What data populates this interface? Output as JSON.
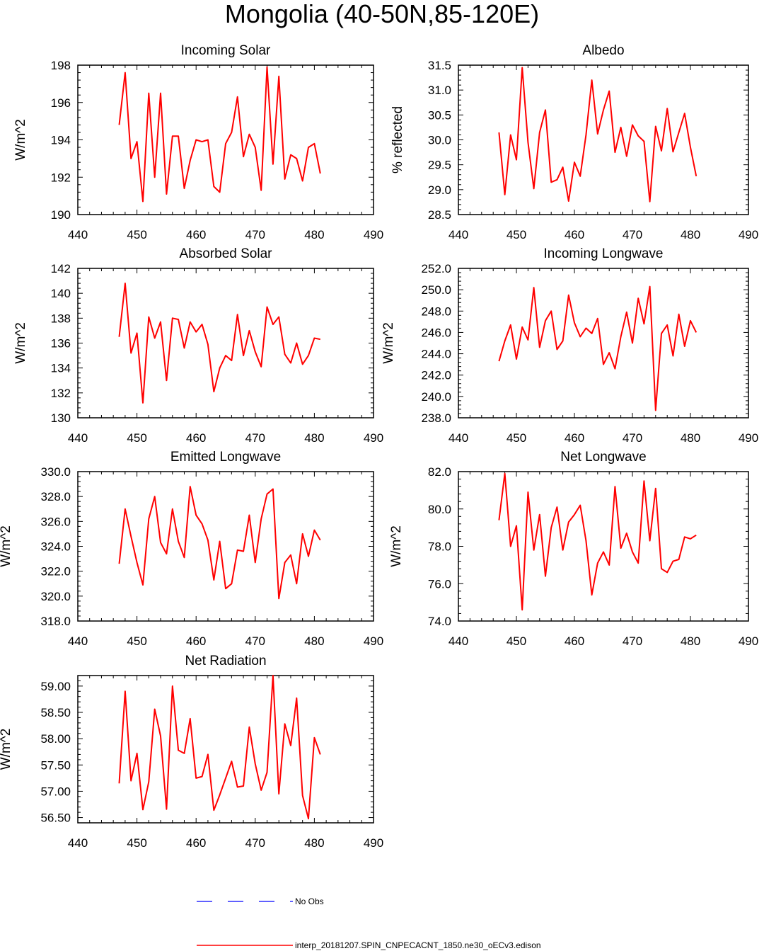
{
  "title": "Mongolia (40-50N,85-120E)",
  "chart_data": [
    {
      "id": "incoming-solar",
      "type": "line",
      "title": "Incoming Solar",
      "ylabel": "W/m^2",
      "xlim": [
        440,
        490
      ],
      "ylim": [
        190,
        198
      ],
      "xticks": [
        "440",
        "450",
        "460",
        "470",
        "480",
        "490"
      ],
      "yticks": [
        "190",
        "192",
        "194",
        "196",
        "198"
      ],
      "series": [
        {
          "color": "#ff0000",
          "x": [
            447,
            448,
            449,
            450,
            451,
            452,
            453,
            454,
            455,
            456,
            457,
            458,
            459,
            460,
            461,
            462,
            463,
            464,
            465,
            466,
            467,
            468,
            469,
            470,
            471,
            472,
            473,
            474,
            475,
            476,
            477,
            478,
            479,
            480,
            481
          ],
          "y": [
            194.8,
            197.6,
            193.0,
            193.9,
            190.7,
            196.5,
            192.0,
            196.5,
            191.1,
            194.2,
            194.2,
            191.4,
            192.9,
            194.0,
            193.9,
            194.0,
            191.5,
            191.2,
            193.8,
            194.4,
            196.3,
            193.1,
            194.3,
            193.6,
            191.3,
            197.9,
            192.7,
            197.4,
            191.9,
            193.2,
            193.0,
            191.8,
            193.6,
            193.8,
            192.2
          ]
        }
      ]
    },
    {
      "id": "albedo",
      "type": "line",
      "title": "Albedo",
      "ylabel": "% reflected",
      "xlim": [
        440,
        490
      ],
      "ylim": [
        28.5,
        31.5
      ],
      "xticks": [
        "440",
        "450",
        "460",
        "470",
        "480",
        "490"
      ],
      "yticks": [
        "28.5",
        "29.0",
        "29.5",
        "30.0",
        "30.5",
        "31.0",
        "31.5"
      ],
      "series": [
        {
          "color": "#ff0000",
          "x": [
            447,
            448,
            449,
            450,
            451,
            452,
            453,
            454,
            455,
            456,
            457,
            458,
            459,
            460,
            461,
            462,
            463,
            464,
            465,
            466,
            467,
            468,
            469,
            470,
            471,
            472,
            473,
            474,
            475,
            476,
            477,
            478,
            479,
            480,
            481
          ],
          "y": [
            30.15,
            28.9,
            30.1,
            29.6,
            31.45,
            29.95,
            29.02,
            30.15,
            30.6,
            29.15,
            29.2,
            29.45,
            28.77,
            29.55,
            29.27,
            30.1,
            31.2,
            30.12,
            30.6,
            30.98,
            29.75,
            30.25,
            29.67,
            30.3,
            30.08,
            29.97,
            28.76,
            30.27,
            29.78,
            30.63,
            29.76,
            30.15,
            30.53,
            29.85,
            29.27
          ]
        }
      ]
    },
    {
      "id": "absorbed-solar",
      "type": "line",
      "title": "Absorbed Solar",
      "ylabel": "W/m^2",
      "xlim": [
        440,
        490
      ],
      "ylim": [
        130,
        142
      ],
      "xticks": [
        "440",
        "450",
        "460",
        "470",
        "480",
        "490"
      ],
      "yticks": [
        "130",
        "132",
        "134",
        "136",
        "138",
        "140",
        "142"
      ],
      "series": [
        {
          "color": "#ff0000",
          "x": [
            447,
            448,
            449,
            450,
            451,
            452,
            453,
            454,
            455,
            456,
            457,
            458,
            459,
            460,
            461,
            462,
            463,
            464,
            465,
            466,
            467,
            468,
            469,
            470,
            471,
            472,
            473,
            474,
            475,
            476,
            477,
            478,
            479,
            480,
            481
          ],
          "y": [
            136.5,
            140.8,
            135.2,
            136.8,
            131.2,
            138.1,
            136.4,
            137.7,
            133.0,
            138.0,
            137.9,
            135.6,
            137.7,
            136.9,
            137.5,
            135.9,
            132.1,
            134.0,
            135.0,
            134.6,
            138.3,
            135.0,
            137.0,
            135.3,
            134.1,
            138.9,
            137.5,
            138.1,
            135.1,
            134.4,
            136.0,
            134.3,
            135.0,
            136.4,
            136.3
          ]
        }
      ]
    },
    {
      "id": "incoming-longwave",
      "type": "line",
      "title": "Incoming Longwave",
      "ylabel": "W/m^2",
      "xlim": [
        440,
        490
      ],
      "ylim": [
        238,
        252
      ],
      "xticks": [
        "440",
        "450",
        "460",
        "470",
        "480",
        "490"
      ],
      "yticks": [
        "238.0",
        "240.0",
        "242.0",
        "244.0",
        "246.0",
        "248.0",
        "250.0",
        "252.0"
      ],
      "series": [
        {
          "color": "#ff0000",
          "x": [
            447,
            448,
            449,
            450,
            451,
            452,
            453,
            454,
            455,
            456,
            457,
            458,
            459,
            460,
            461,
            462,
            463,
            464,
            465,
            466,
            467,
            468,
            469,
            470,
            471,
            472,
            473,
            474,
            475,
            476,
            477,
            478,
            479,
            480,
            481
          ],
          "y": [
            243.3,
            245.2,
            246.7,
            243.5,
            246.5,
            245.3,
            250.2,
            244.6,
            247.1,
            248.0,
            244.4,
            245.2,
            249.5,
            246.9,
            245.6,
            246.4,
            245.9,
            247.3,
            243.0,
            244.1,
            242.6,
            245.6,
            247.9,
            245.0,
            249.2,
            246.8,
            250.3,
            238.7,
            245.9,
            246.7,
            243.8,
            247.7,
            244.7,
            247.1,
            246.0
          ]
        }
      ]
    },
    {
      "id": "emitted-longwave",
      "type": "line",
      "title": "Emitted Longwave",
      "ylabel": "W/m^2",
      "xlim": [
        440,
        490
      ],
      "ylim": [
        318,
        330
      ],
      "xticks": [
        "440",
        "450",
        "460",
        "470",
        "480",
        "490"
      ],
      "yticks": [
        "318.0",
        "320.0",
        "322.0",
        "324.0",
        "326.0",
        "328.0",
        "330.0"
      ],
      "series": [
        {
          "color": "#ff0000",
          "x": [
            447,
            448,
            449,
            450,
            451,
            452,
            453,
            454,
            455,
            456,
            457,
            458,
            459,
            460,
            461,
            462,
            463,
            464,
            465,
            466,
            467,
            468,
            469,
            470,
            471,
            472,
            473,
            474,
            475,
            476,
            477,
            478,
            479,
            480,
            481
          ],
          "y": [
            322.6,
            327.0,
            324.8,
            322.7,
            320.9,
            326.2,
            328.0,
            324.3,
            323.4,
            327.0,
            324.4,
            323.1,
            328.8,
            326.5,
            325.8,
            324.5,
            321.3,
            324.4,
            320.6,
            321.0,
            323.7,
            323.6,
            326.5,
            322.7,
            326.2,
            328.2,
            328.6,
            319.8,
            322.7,
            323.3,
            321.0,
            325.0,
            323.2,
            325.3,
            324.5
          ]
        }
      ]
    },
    {
      "id": "net-longwave",
      "type": "line",
      "title": "Net Longwave",
      "ylabel": "W/m^2",
      "xlim": [
        440,
        490
      ],
      "ylim": [
        74,
        82
      ],
      "xticks": [
        "440",
        "450",
        "460",
        "470",
        "480",
        "490"
      ],
      "yticks": [
        "74.0",
        "76.0",
        "78.0",
        "80.0",
        "82.0"
      ],
      "series": [
        {
          "color": "#ff0000",
          "x": [
            447,
            448,
            449,
            450,
            451,
            452,
            453,
            454,
            455,
            456,
            457,
            458,
            459,
            460,
            461,
            462,
            463,
            464,
            465,
            466,
            467,
            468,
            469,
            470,
            471,
            472,
            473,
            474,
            475,
            476,
            477,
            478,
            479,
            480,
            481
          ],
          "y": [
            79.4,
            81.9,
            78.0,
            79.1,
            74.6,
            80.9,
            77.8,
            79.7,
            76.4,
            79.0,
            80.1,
            77.8,
            79.3,
            79.7,
            80.2,
            78.3,
            75.4,
            77.1,
            77.7,
            77.0,
            81.2,
            77.9,
            78.7,
            77.7,
            77.1,
            81.5,
            78.3,
            81.1,
            76.8,
            76.6,
            77.2,
            77.3,
            78.5,
            78.4,
            78.6
          ]
        }
      ]
    },
    {
      "id": "net-radiation",
      "type": "line",
      "title": "Net Radiation",
      "ylabel": "W/m^2",
      "xlim": [
        440,
        490
      ],
      "ylim": [
        56.4,
        59.2
      ],
      "xticks": [
        "440",
        "450",
        "460",
        "470",
        "480",
        "490"
      ],
      "yticks": [
        "56.50",
        "57.00",
        "57.50",
        "58.00",
        "58.50",
        "59.00"
      ],
      "series": [
        {
          "color": "#ff0000",
          "x": [
            447,
            448,
            449,
            450,
            451,
            452,
            453,
            454,
            455,
            456,
            457,
            458,
            459,
            460,
            461,
            462,
            463,
            464,
            465,
            466,
            467,
            468,
            469,
            470,
            471,
            472,
            473,
            474,
            475,
            476,
            477,
            478,
            479,
            480,
            481
          ],
          "y": [
            57.15,
            58.9,
            57.2,
            57.72,
            56.65,
            57.18,
            58.56,
            58.05,
            56.66,
            59.0,
            57.78,
            57.72,
            58.38,
            57.25,
            57.28,
            57.7,
            56.64,
            56.93,
            57.25,
            57.57,
            57.08,
            57.1,
            58.22,
            57.52,
            57.02,
            57.36,
            59.2,
            56.95,
            58.28,
            57.87,
            58.77,
            56.92,
            56.48,
            58.02,
            57.7
          ]
        }
      ]
    }
  ],
  "legend": [
    {
      "label": "No Obs",
      "color": "#0000ff",
      "style": "dashed"
    },
    {
      "label": "interp_20181207.SPIN_CNPECACNT_1850.ne30_oECv3.edison",
      "color": "#ff0000",
      "style": "solid"
    }
  ]
}
